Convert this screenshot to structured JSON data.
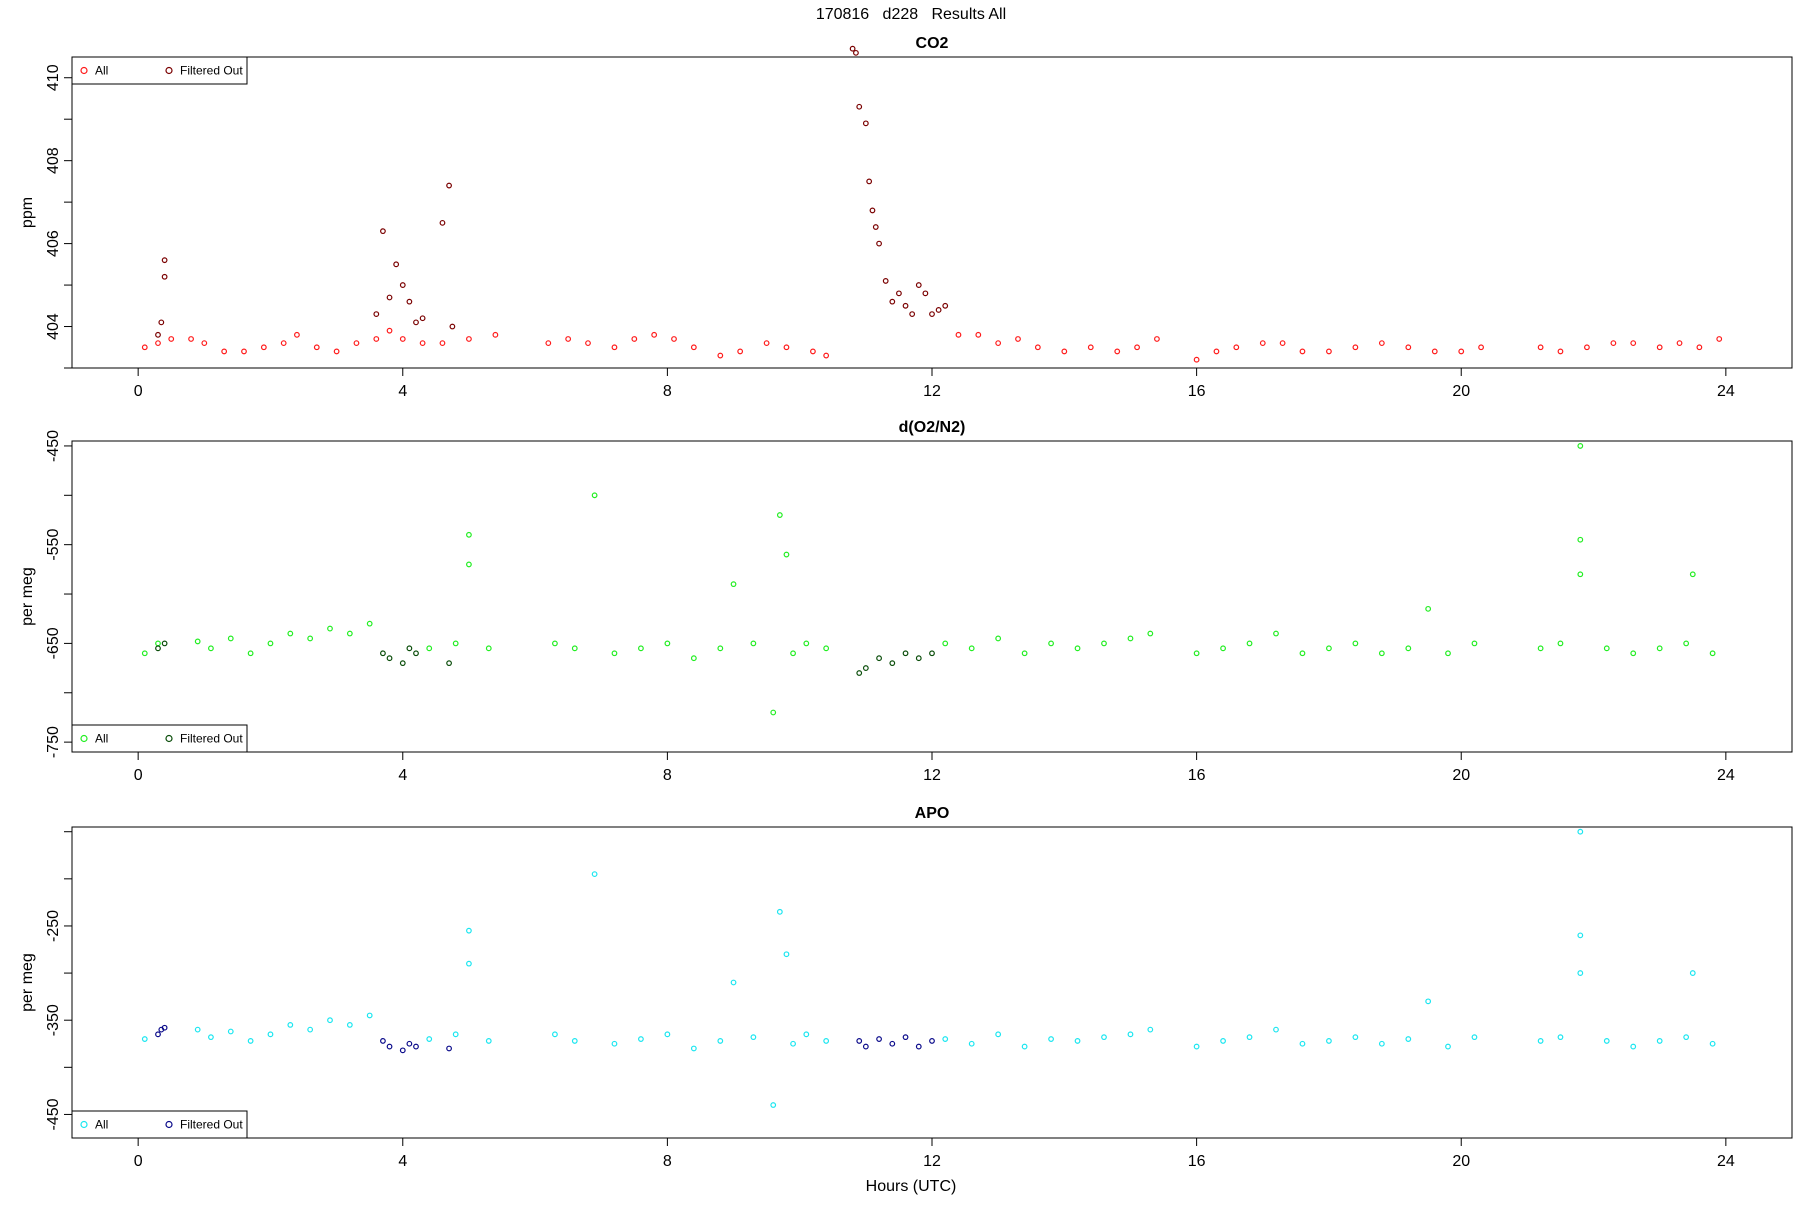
{
  "figure": {
    "title": "170816   d228   Results All",
    "xlabel": "Hours (UTC)"
  },
  "chart_data": [
    {
      "type": "scatter",
      "title": "CO2",
      "ylabel": "ppm",
      "xlabel": "",
      "xlim": [
        -1,
        25
      ],
      "ylim": [
        403,
        410.5
      ],
      "xticks": [
        0,
        4,
        8,
        12,
        16,
        20,
        24
      ],
      "yticks": [
        404,
        406,
        408,
        410
      ],
      "grid": false,
      "legend": {
        "position": "top-left",
        "entries": [
          "All",
          "Filtered Out"
        ]
      },
      "colors": {
        "all": "#ff1a1a",
        "filtered": "#7a0000"
      },
      "series": [
        {
          "name": "All",
          "x": [
            0.1,
            0.3,
            0.5,
            0.8,
            1.0,
            1.3,
            1.6,
            1.9,
            2.2,
            2.4,
            2.7,
            3.0,
            3.3,
            3.6,
            3.8,
            4.0,
            4.3,
            4.6,
            5.0,
            5.4,
            6.2,
            6.5,
            6.8,
            7.2,
            7.5,
            7.8,
            8.1,
            8.4,
            8.8,
            9.1,
            9.5,
            9.8,
            10.2,
            10.4,
            12.4,
            12.7,
            13.0,
            13.3,
            13.6,
            14.0,
            14.4,
            14.8,
            15.1,
            15.4,
            16.0,
            16.3,
            16.6,
            17.0,
            17.3,
            17.6,
            18.0,
            18.4,
            18.8,
            19.2,
            19.6,
            20.0,
            20.3,
            21.2,
            21.5,
            21.9,
            22.3,
            22.6,
            23.0,
            23.3,
            23.6,
            23.9
          ],
          "y": [
            403.5,
            403.6,
            403.7,
            403.7,
            403.6,
            403.4,
            403.4,
            403.5,
            403.6,
            403.8,
            403.5,
            403.4,
            403.6,
            403.7,
            403.9,
            403.7,
            403.6,
            403.6,
            403.7,
            403.8,
            403.6,
            403.7,
            403.6,
            403.5,
            403.7,
            403.8,
            403.7,
            403.5,
            403.3,
            403.4,
            403.6,
            403.5,
            403.4,
            403.3,
            403.8,
            403.8,
            403.6,
            403.7,
            403.5,
            403.4,
            403.5,
            403.4,
            403.5,
            403.7,
            403.2,
            403.4,
            403.5,
            403.6,
            403.6,
            403.4,
            403.4,
            403.5,
            403.6,
            403.5,
            403.4,
            403.4,
            403.5,
            403.5,
            403.4,
            403.5,
            403.6,
            403.6,
            403.5,
            403.6,
            403.5,
            403.7
          ]
        },
        {
          "name": "Filtered Out",
          "x": [
            0.3,
            0.35,
            0.4,
            0.4,
            3.6,
            3.7,
            3.8,
            3.9,
            4.0,
            4.1,
            4.2,
            4.3,
            4.6,
            4.7,
            4.75,
            10.8,
            10.85,
            10.9,
            11.0,
            11.05,
            11.1,
            11.15,
            11.2,
            11.3,
            11.4,
            11.5,
            11.6,
            11.7,
            11.8,
            11.9,
            12.0,
            12.1,
            12.2
          ],
          "y": [
            403.8,
            404.1,
            405.2,
            405.6,
            404.3,
            406.3,
            404.7,
            405.5,
            405.0,
            404.6,
            404.1,
            404.2,
            406.5,
            407.4,
            404.0,
            410.7,
            410.6,
            409.3,
            408.9,
            407.5,
            406.8,
            406.4,
            406.0,
            405.1,
            404.6,
            404.8,
            404.5,
            404.3,
            405.0,
            404.8,
            404.3,
            404.4,
            404.5
          ]
        }
      ]
    },
    {
      "type": "scatter",
      "title": "d(O2/N2)",
      "ylabel": "per meg",
      "xlabel": "",
      "xlim": [
        -1,
        25
      ],
      "ylim": [
        -760,
        -445
      ],
      "xticks": [
        0,
        4,
        8,
        12,
        16,
        20,
        24
      ],
      "yticks": [
        -450,
        -550,
        -650,
        -750
      ],
      "grid": false,
      "legend": {
        "position": "bottom-left",
        "entries": [
          "All",
          "Filtered Out"
        ]
      },
      "colors": {
        "all": "#22ee22",
        "filtered": "#0a4d0a"
      },
      "series": [
        {
          "name": "All",
          "x": [
            0.1,
            0.3,
            0.9,
            1.1,
            1.4,
            1.7,
            2.0,
            2.3,
            2.6,
            2.9,
            3.2,
            3.5,
            4.4,
            4.8,
            5.0,
            5.0,
            5.3,
            6.3,
            6.6,
            6.9,
            7.2,
            7.6,
            8.0,
            8.4,
            8.8,
            9.0,
            9.3,
            9.6,
            9.7,
            9.8,
            9.9,
            10.1,
            10.4,
            12.2,
            12.6,
            13.0,
            13.4,
            13.8,
            14.2,
            14.6,
            15.0,
            15.3,
            16.0,
            16.4,
            16.8,
            17.2,
            17.6,
            18.0,
            18.4,
            18.8,
            19.2,
            19.5,
            19.8,
            20.2,
            21.2,
            21.5,
            21.8,
            21.8,
            21.8,
            22.2,
            22.6,
            23.0,
            23.4,
            23.5,
            23.8
          ],
          "y": [
            -660,
            -650,
            -648,
            -655,
            -645,
            -660,
            -650,
            -640,
            -645,
            -635,
            -640,
            -630,
            -655,
            -650,
            -570,
            -540,
            -655,
            -650,
            -655,
            -500,
            -660,
            -655,
            -650,
            -665,
            -655,
            -590,
            -650,
            -720,
            -520,
            -560,
            -660,
            -650,
            -655,
            -650,
            -655,
            -645,
            -660,
            -650,
            -655,
            -650,
            -645,
            -640,
            -660,
            -655,
            -650,
            -640,
            -660,
            -655,
            -650,
            -660,
            -655,
            -615,
            -660,
            -650,
            -655,
            -650,
            -450,
            -545,
            -580,
            -655,
            -660,
            -655,
            -650,
            -580,
            -660
          ]
        },
        {
          "name": "Filtered Out",
          "x": [
            0.3,
            0.4,
            3.7,
            3.8,
            4.0,
            4.1,
            4.2,
            4.7,
            10.9,
            11.0,
            11.2,
            11.4,
            11.6,
            11.8,
            12.0
          ],
          "y": [
            -655,
            -650,
            -660,
            -665,
            -670,
            -655,
            -660,
            -670,
            -680,
            -675,
            -665,
            -670,
            -660,
            -665,
            -660
          ]
        }
      ]
    },
    {
      "type": "scatter",
      "title": "APO",
      "ylabel": "per meg",
      "xlabel": "",
      "xlim": [
        -1,
        25
      ],
      "ylim": [
        -475,
        -145
      ],
      "xticks": [
        0,
        4,
        8,
        12,
        16,
        20,
        24
      ],
      "yticks": [
        -250,
        -350,
        -450
      ],
      "grid": false,
      "legend": {
        "position": "bottom-left",
        "entries": [
          "All",
          "Filtered Out"
        ]
      },
      "colors": {
        "all": "#1ae6f0",
        "filtered": "#0a0a8a"
      },
      "series": [
        {
          "name": "All",
          "x": [
            0.1,
            0.9,
            1.1,
            1.4,
            1.7,
            2.0,
            2.3,
            2.6,
            2.9,
            3.2,
            3.5,
            4.4,
            4.8,
            5.0,
            5.0,
            5.3,
            6.3,
            6.6,
            6.9,
            7.2,
            7.6,
            8.0,
            8.4,
            8.8,
            9.0,
            9.3,
            9.6,
            9.7,
            9.8,
            9.9,
            10.1,
            10.4,
            12.2,
            12.6,
            13.0,
            13.4,
            13.8,
            14.2,
            14.6,
            15.0,
            15.3,
            16.0,
            16.4,
            16.8,
            17.2,
            17.6,
            18.0,
            18.4,
            18.8,
            19.2,
            19.5,
            19.8,
            20.2,
            21.2,
            21.5,
            21.8,
            21.8,
            21.8,
            22.2,
            22.6,
            23.0,
            23.4,
            23.5,
            23.8
          ],
          "y": [
            -370,
            -360,
            -368,
            -362,
            -372,
            -365,
            -355,
            -360,
            -350,
            -355,
            -345,
            -370,
            -365,
            -290,
            -255,
            -372,
            -365,
            -372,
            -195,
            -375,
            -370,
            -365,
            -380,
            -372,
            -310,
            -368,
            -440,
            -235,
            -280,
            -375,
            -365,
            -372,
            -370,
            -375,
            -365,
            -378,
            -370,
            -372,
            -368,
            -365,
            -360,
            -378,
            -372,
            -368,
            -360,
            -375,
            -372,
            -368,
            -375,
            -370,
            -330,
            -378,
            -368,
            -372,
            -368,
            -150,
            -260,
            -300,
            -372,
            -378,
            -372,
            -368,
            -300,
            -375
          ]
        },
        {
          "name": "Filtered Out",
          "x": [
            0.3,
            0.35,
            0.4,
            3.7,
            3.8,
            4.0,
            4.1,
            4.2,
            4.7,
            10.9,
            11.0,
            11.2,
            11.4,
            11.6,
            11.8,
            12.0
          ],
          "y": [
            -365,
            -360,
            -358,
            -372,
            -378,
            -382,
            -375,
            -378,
            -380,
            -372,
            -378,
            -370,
            -375,
            -368,
            -378,
            -372
          ]
        }
      ]
    }
  ]
}
